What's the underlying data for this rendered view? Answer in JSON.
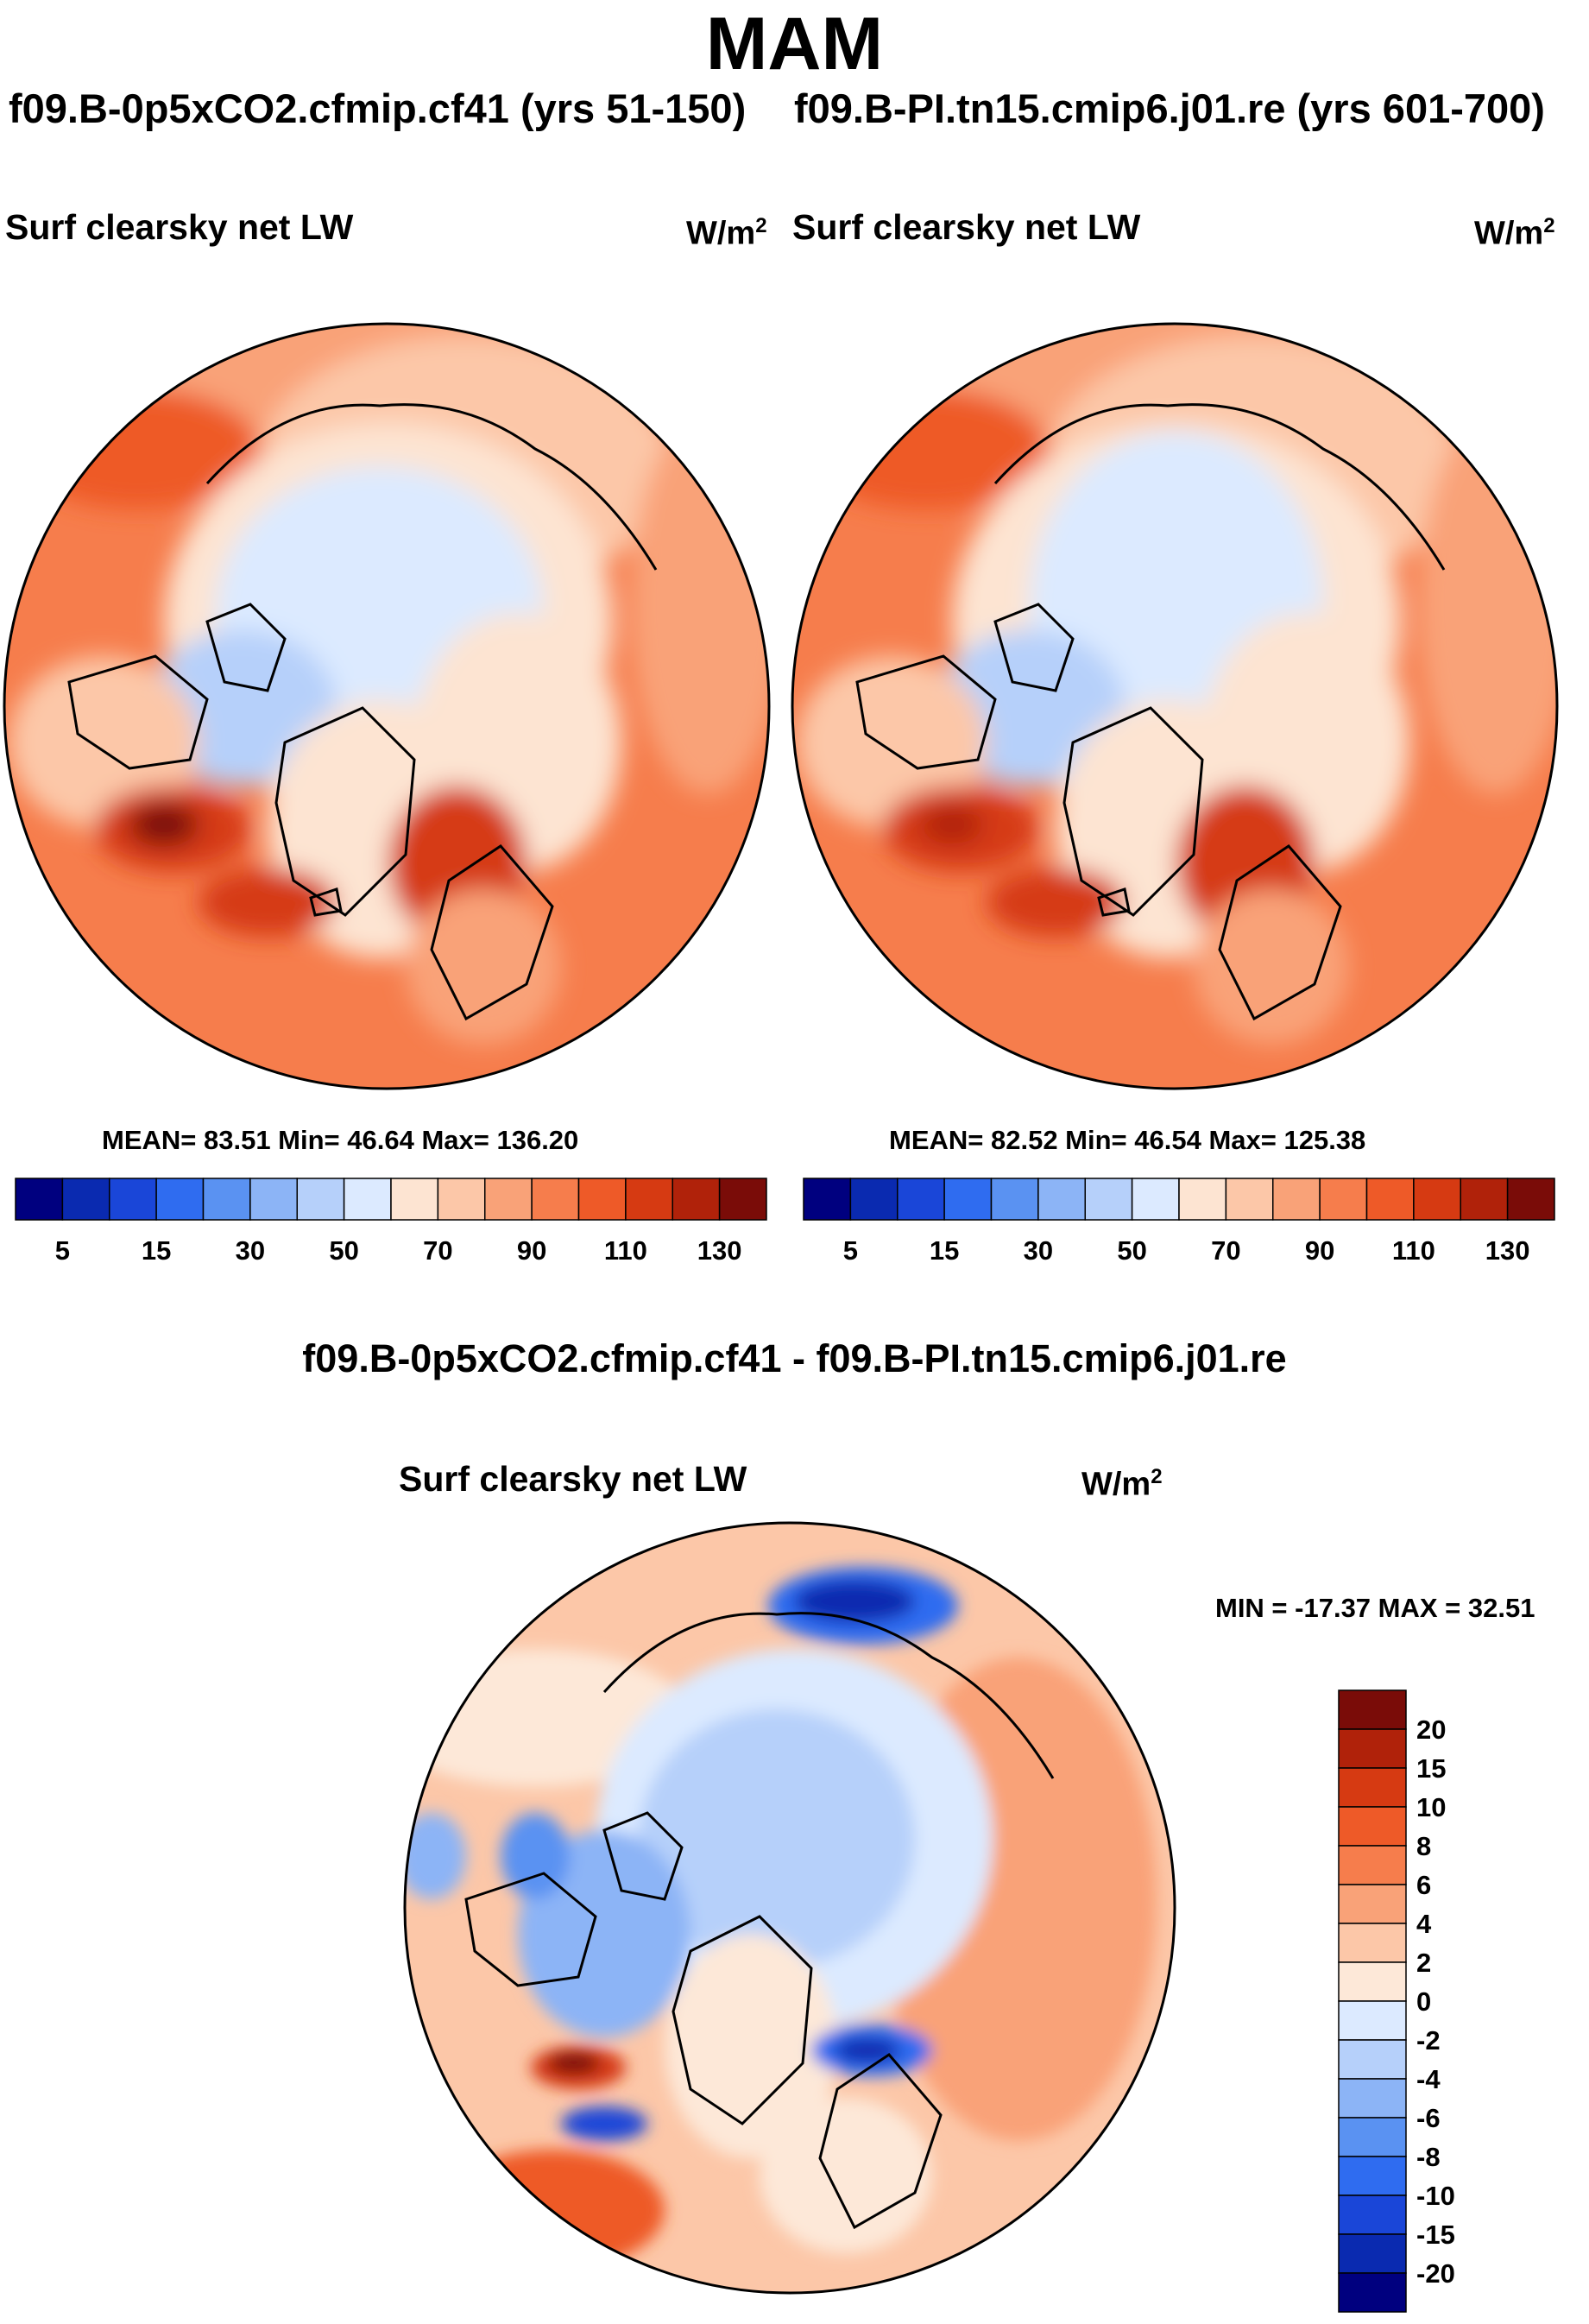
{
  "season": "MAM",
  "panels": {
    "left": {
      "case": "f09.B-0p5xCO2.cfmip.cf41 (yrs 51-150)",
      "variable": "Surf clearsky net LW",
      "units": "W/m",
      "units_exp": "2",
      "stats": "MEAN=  83.51  Min=  46.64  Max= 136.20"
    },
    "right": {
      "case": "f09.B-PI.tn15.cmip6.j01.re (yrs 601-700)",
      "variable": "Surf clearsky net LW",
      "units": "W/m",
      "units_exp": "2",
      "stats": "MEAN=  82.52  Min=  46.54  Max= 125.38"
    },
    "diff": {
      "case": "f09.B-0p5xCO2.cfmip.cf41 - f09.B-PI.tn15.cmip6.j01.re",
      "variable": "Surf clearsky net LW",
      "units": "W/m",
      "units_exp": "2",
      "stats": "MIN = -17.37 MAX =  32.51"
    }
  },
  "chart_data": [
    {
      "type": "heatmap",
      "projection": "north-polar-stereographic",
      "title": "Surf clearsky net LW",
      "subtitle": "f09.B-0p5xCO2.cfmip.cf41 (yrs 51-150)",
      "units": "W/m2",
      "mean": 83.51,
      "min": 46.64,
      "max": 136.2,
      "colorbar": {
        "orientation": "horizontal",
        "tick_labels": [
          "5",
          "15",
          "30",
          "50",
          "70",
          "90",
          "110",
          "130"
        ],
        "colors": [
          "#00007f",
          "#0a2ab0",
          "#1a46d8",
          "#2f6cf0",
          "#5a92f2",
          "#8cb4f6",
          "#b6d0fa",
          "#dceaff",
          "#fde4d2",
          "#fcc7a8",
          "#f9a278",
          "#f67d4c",
          "#ee5a28",
          "#d63a12",
          "#b0220a",
          "#7a0c08"
        ]
      }
    },
    {
      "type": "heatmap",
      "projection": "north-polar-stereographic",
      "title": "Surf clearsky net LW",
      "subtitle": "f09.B-PI.tn15.cmip6.j01.re (yrs 601-700)",
      "units": "W/m2",
      "mean": 82.52,
      "min": 46.54,
      "max": 125.38,
      "colorbar": {
        "orientation": "horizontal",
        "tick_labels": [
          "5",
          "15",
          "30",
          "50",
          "70",
          "90",
          "110",
          "130"
        ],
        "colors": [
          "#00007f",
          "#0a2ab0",
          "#1a46d8",
          "#2f6cf0",
          "#5a92f2",
          "#8cb4f6",
          "#b6d0fa",
          "#dceaff",
          "#fde4d2",
          "#fcc7a8",
          "#f9a278",
          "#f67d4c",
          "#ee5a28",
          "#d63a12",
          "#b0220a",
          "#7a0c08"
        ]
      }
    },
    {
      "type": "heatmap",
      "projection": "north-polar-stereographic",
      "title": "Surf clearsky net LW",
      "subtitle": "f09.B-0p5xCO2.cfmip.cf41 - f09.B-PI.tn15.cmip6.j01.re",
      "units": "W/m2",
      "min": -17.37,
      "max": 32.51,
      "colorbar": {
        "orientation": "vertical",
        "tick_labels": [
          "20",
          "15",
          "10",
          "8",
          "6",
          "4",
          "2",
          "0",
          "-2",
          "-4",
          "-6",
          "-8",
          "-10",
          "-15",
          "-20"
        ],
        "colors": [
          "#7a0c08",
          "#b0220a",
          "#d63a12",
          "#ee5a28",
          "#f67d4c",
          "#f9a278",
          "#fcc7a8",
          "#fde8d8",
          "#dceaff",
          "#b6d0fa",
          "#8cb4f6",
          "#5a92f2",
          "#2f6cf0",
          "#1a46d8",
          "#0a2ab0",
          "#00007f"
        ]
      }
    }
  ]
}
